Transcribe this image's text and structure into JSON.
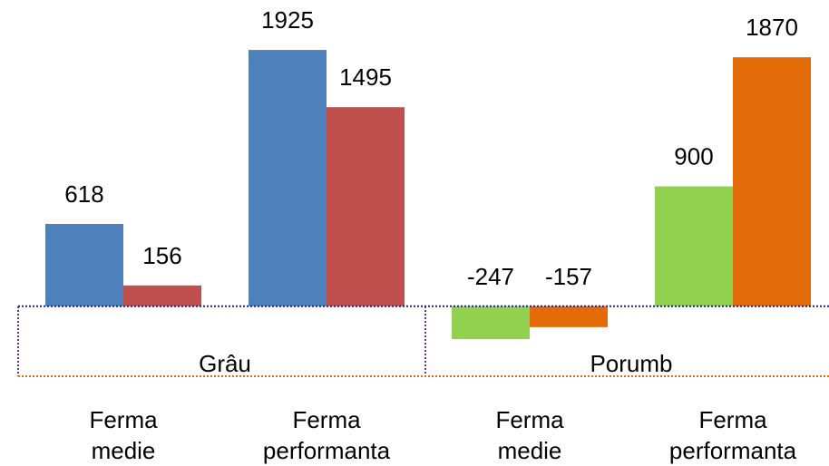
{
  "chart_data": {
    "type": "bar",
    "categories": [
      "Ferma medie",
      "Ferma performanta",
      "Ferma medie",
      "Ferma performanta"
    ],
    "groups": [
      {
        "label": "Grâu",
        "span": [
          0,
          1
        ]
      },
      {
        "label": "Porumb",
        "span": [
          2,
          3
        ]
      }
    ],
    "series": [
      {
        "colors": [
          "#4f81bd",
          "#4f81bd",
          "#92d050",
          "#92d050"
        ],
        "values": [
          618,
          1925,
          -247,
          900
        ]
      },
      {
        "colors": [
          "#c0504d",
          "#c0504d",
          "#e36c09",
          "#e36c09"
        ],
        "values": [
          156,
          1495,
          -157,
          1870
        ]
      }
    ],
    "ylim": [
      -1200,
      2300
    ]
  }
}
